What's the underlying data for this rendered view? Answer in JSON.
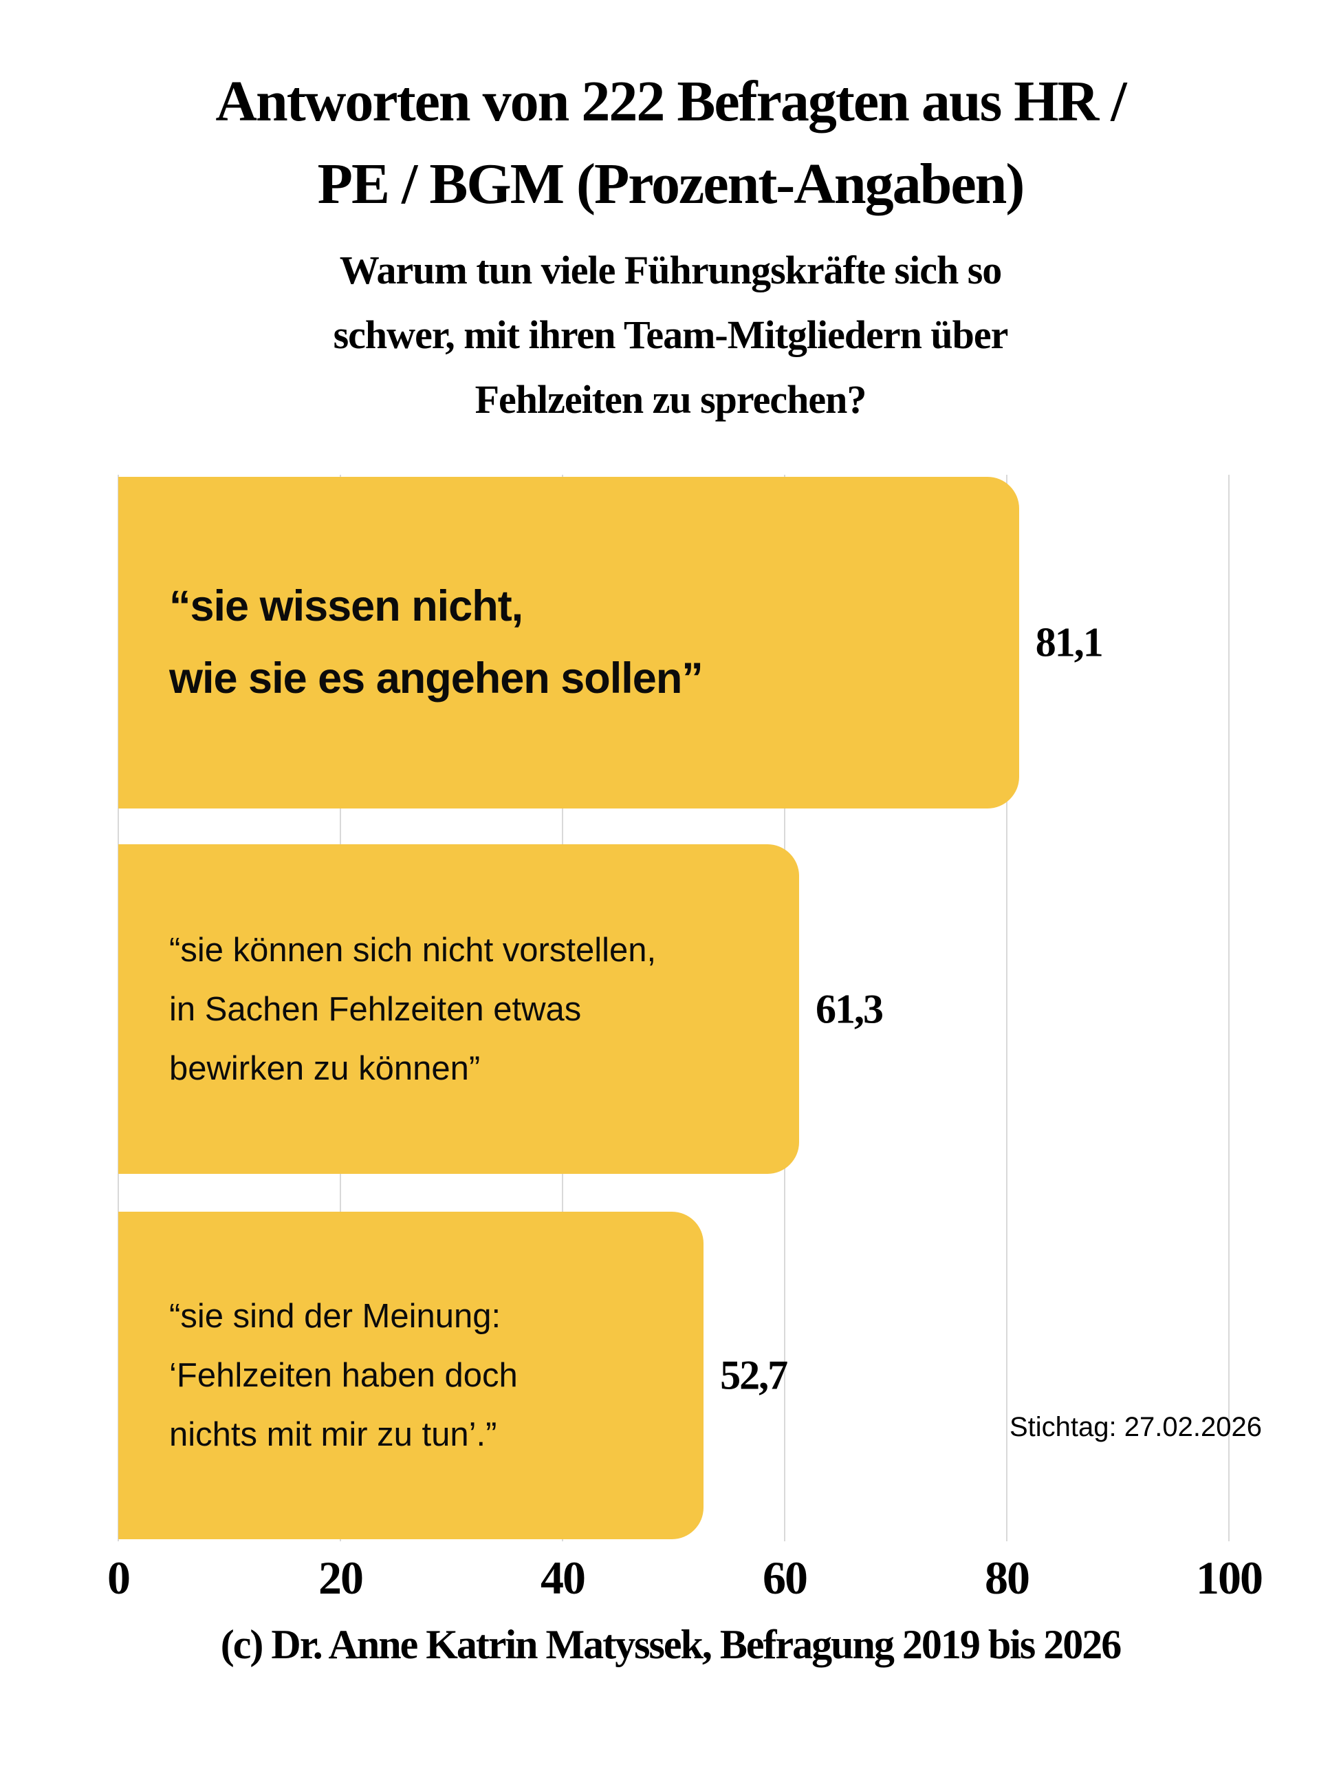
{
  "header": {
    "title_lines": [
      "Antworten von 222 Befragten aus HR /",
      "PE / BGM (Prozent-Angaben)"
    ],
    "subtitle_lines": [
      "Warum tun viele Führungskräfte sich so",
      "schwer, mit ihren Team-Mitgliedern über",
      "Fehlzeiten zu sprechen?"
    ]
  },
  "chart_data": {
    "type": "bar",
    "orientation": "horizontal",
    "title": "Antworten von 222 Befragten aus HR / PE / BGM (Prozent-Angaben)",
    "subtitle": "Warum tun viele Führungskräfte sich so schwer, mit ihren Team-Mitgliedern über Fehlzeiten zu sprechen?",
    "categories": [
      "“sie wissen nicht, wie sie es angehen sollen”",
      "“sie können sich nicht vorstellen, in Sachen Fehlzeiten etwas bewirken zu können”",
      "“sie sind der Meinung: ‘Fehlzeiten haben doch nichts mit mir zu tun’.”"
    ],
    "categories_lines": [
      [
        "“sie wissen nicht,",
        "wie sie es angehen sollen”"
      ],
      [
        "“sie können sich nicht vorstellen,",
        "in Sachen Fehlzeiten etwas",
        "bewirken zu können”"
      ],
      [
        "“sie sind der Meinung:",
        "‘Fehlzeiten haben doch",
        "nichts mit mir zu tun’.”"
      ]
    ],
    "values": [
      81.1,
      61.3,
      52.7
    ],
    "value_labels": [
      "81,1",
      "61,3",
      "52,7"
    ],
    "xlabel": "",
    "ylabel": "",
    "xlim": [
      0,
      100
    ],
    "ticks": [
      0,
      20,
      40,
      60,
      80,
      100
    ],
    "tick_labels": [
      "0",
      "20",
      "40",
      "60",
      "80",
      "100"
    ],
    "grid": "vertical-only",
    "legend": "none"
  },
  "annotation": {
    "text": "Stichtag: 27.02.2026"
  },
  "footer": {
    "credit": "(c) Dr. Anne Katrin Matyssek, Befragung 2019 bis 2026"
  },
  "colors": {
    "bar": "#F6C644",
    "grid": "#D9D9D9",
    "text": "#000000",
    "background": "#FFFFFF"
  }
}
